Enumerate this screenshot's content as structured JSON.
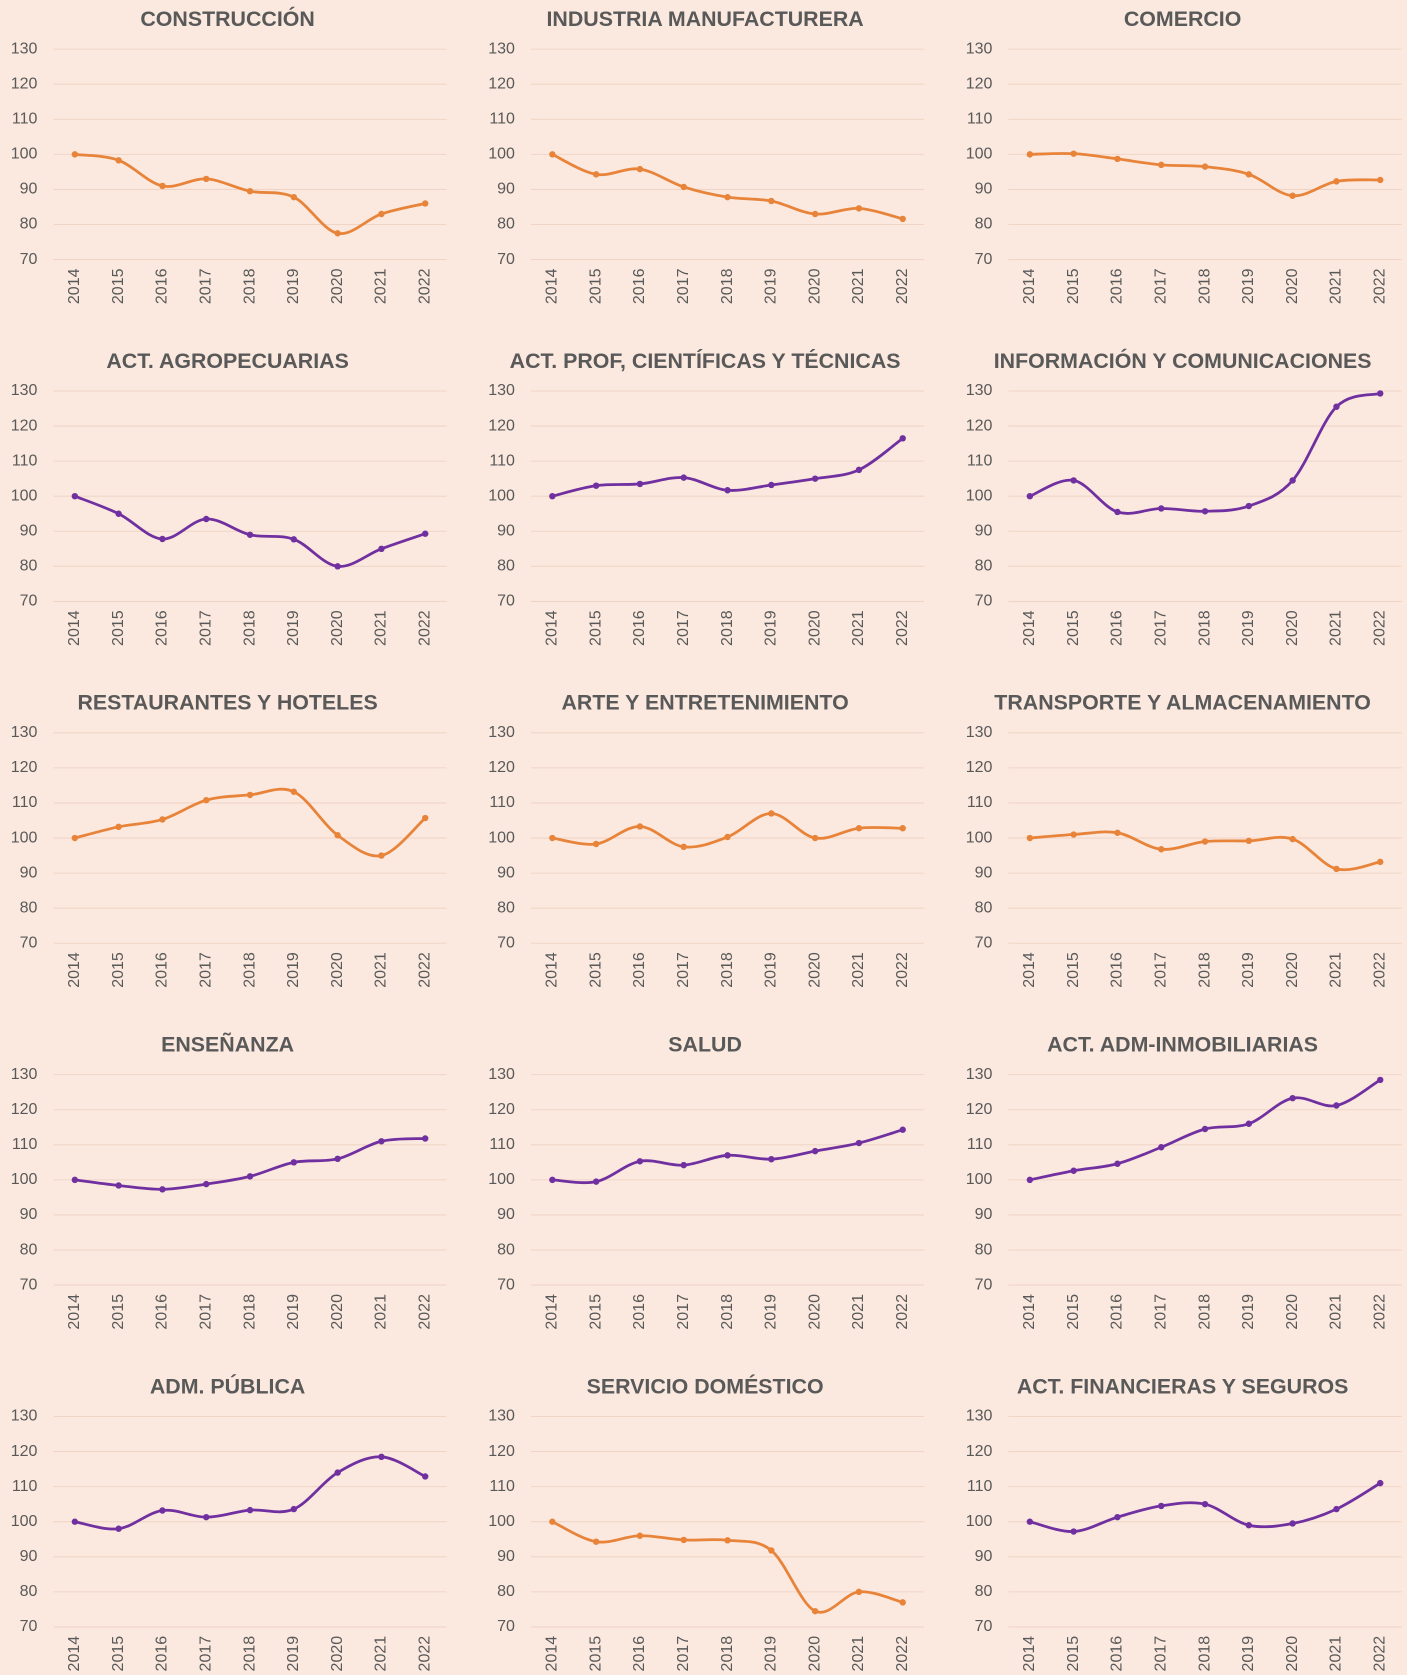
{
  "chart_data": [
    {
      "type": "line",
      "title": "CONSTRUCCIÓN",
      "categories": [
        "2014",
        "2015",
        "2016",
        "2017",
        "2018",
        "2019",
        "2020",
        "2021",
        "2022"
      ],
      "values": [
        100,
        98.3,
        91,
        93,
        89.5,
        87.8,
        77.5,
        83,
        86
      ],
      "color": "#e8833a",
      "ylim": [
        70,
        130
      ],
      "yticks": [
        70,
        80,
        90,
        100,
        110,
        120,
        130
      ],
      "grid": true,
      "smooth": true
    },
    {
      "type": "line",
      "title": "INDUSTRIA MANUFACTURERA",
      "categories": [
        "2014",
        "2015",
        "2016",
        "2017",
        "2018",
        "2019",
        "2020",
        "2021",
        "2022"
      ],
      "values": [
        100,
        94.3,
        95.8,
        90.7,
        87.8,
        86.7,
        83,
        84.6,
        81.6
      ],
      "color": "#e8833a",
      "ylim": [
        70,
        130
      ],
      "yticks": [
        70,
        80,
        90,
        100,
        110,
        120,
        130
      ],
      "grid": true,
      "smooth": true
    },
    {
      "type": "line",
      "title": "COMERCIO",
      "categories": [
        "2014",
        "2015",
        "2016",
        "2017",
        "2018",
        "2019",
        "2020",
        "2021",
        "2022"
      ],
      "values": [
        100,
        100.2,
        98.7,
        97,
        96.5,
        94.3,
        88.2,
        92.3,
        92.7
      ],
      "color": "#e8833a",
      "ylim": [
        70,
        130
      ],
      "yticks": [
        70,
        80,
        90,
        100,
        110,
        120,
        130
      ],
      "grid": true,
      "smooth": true
    },
    {
      "type": "line",
      "title": "ACT. AGROPECUARIAS",
      "categories": [
        "2014",
        "2015",
        "2016",
        "2017",
        "2018",
        "2019",
        "2020",
        "2021",
        "2022"
      ],
      "values": [
        100,
        95,
        87.8,
        93.5,
        89,
        87.7,
        80,
        85,
        89.3
      ],
      "color": "#7030a0",
      "ylim": [
        70,
        130
      ],
      "yticks": [
        70,
        80,
        90,
        100,
        110,
        120,
        130
      ],
      "grid": true,
      "smooth": true
    },
    {
      "type": "line",
      "title": "ACT. PROF, CIENTÍFICAS Y TÉCNICAS",
      "categories": [
        "2014",
        "2015",
        "2016",
        "2017",
        "2018",
        "2019",
        "2020",
        "2021",
        "2022"
      ],
      "values": [
        100,
        103,
        103.5,
        105.3,
        101.7,
        103.2,
        105,
        107.5,
        116.5
      ],
      "color": "#7030a0",
      "ylim": [
        70,
        130
      ],
      "yticks": [
        70,
        80,
        90,
        100,
        110,
        120,
        130
      ],
      "grid": true,
      "smooth": true
    },
    {
      "type": "line",
      "title": "INFORMACIÓN Y COMUNICACIONES",
      "categories": [
        "2014",
        "2015",
        "2016",
        "2017",
        "2018",
        "2019",
        "2020",
        "2021",
        "2022"
      ],
      "values": [
        100,
        104.5,
        95.5,
        96.5,
        95.7,
        97.2,
        104.5,
        125.5,
        129.3
      ],
      "color": "#7030a0",
      "ylim": [
        70,
        130
      ],
      "yticks": [
        70,
        80,
        90,
        100,
        110,
        120,
        130
      ],
      "grid": true,
      "smooth": true
    },
    {
      "type": "line",
      "title": "RESTAURANTES Y HOTELES",
      "categories": [
        "2014",
        "2015",
        "2016",
        "2017",
        "2018",
        "2019",
        "2020",
        "2021",
        "2022"
      ],
      "values": [
        100,
        103.2,
        105.3,
        110.8,
        112.3,
        113.2,
        100.8,
        95,
        105.7
      ],
      "color": "#e8833a",
      "ylim": [
        70,
        130
      ],
      "yticks": [
        70,
        80,
        90,
        100,
        110,
        120,
        130
      ],
      "grid": true,
      "smooth": true
    },
    {
      "type": "line",
      "title": "ARTE Y ENTRETENIMIENTO",
      "categories": [
        "2014",
        "2015",
        "2016",
        "2017",
        "2018",
        "2019",
        "2020",
        "2021",
        "2022"
      ],
      "values": [
        100,
        98.3,
        103.3,
        97.5,
        100.3,
        107,
        100,
        102.8,
        102.8
      ],
      "color": "#e8833a",
      "ylim": [
        70,
        130
      ],
      "yticks": [
        70,
        80,
        90,
        100,
        110,
        120,
        130
      ],
      "grid": true,
      "smooth": true
    },
    {
      "type": "line",
      "title": "TRANSPORTE Y ALMACENAMIENTO",
      "categories": [
        "2014",
        "2015",
        "2016",
        "2017",
        "2018",
        "2019",
        "2020",
        "2021",
        "2022"
      ],
      "values": [
        100,
        101,
        101.5,
        96.8,
        99,
        99.2,
        99.7,
        91.2,
        93.2
      ],
      "color": "#e8833a",
      "ylim": [
        70,
        130
      ],
      "yticks": [
        70,
        80,
        90,
        100,
        110,
        120,
        130
      ],
      "grid": true,
      "smooth": true
    },
    {
      "type": "line",
      "title": "ENSEÑANZA",
      "categories": [
        "2014",
        "2015",
        "2016",
        "2017",
        "2018",
        "2019",
        "2020",
        "2021",
        "2022"
      ],
      "values": [
        100,
        98.4,
        97.3,
        98.8,
        101,
        105,
        106,
        111,
        111.8
      ],
      "color": "#7030a0",
      "ylim": [
        70,
        130
      ],
      "yticks": [
        70,
        80,
        90,
        100,
        110,
        120,
        130
      ],
      "grid": true,
      "smooth": true
    },
    {
      "type": "line",
      "title": "SALUD",
      "categories": [
        "2014",
        "2015",
        "2016",
        "2017",
        "2018",
        "2019",
        "2020",
        "2021",
        "2022"
      ],
      "values": [
        100,
        99.5,
        105.3,
        104.2,
        107,
        105.9,
        108.2,
        110.5,
        114.3
      ],
      "color": "#7030a0",
      "ylim": [
        70,
        130
      ],
      "yticks": [
        70,
        80,
        90,
        100,
        110,
        120,
        130
      ],
      "grid": true,
      "smooth": true
    },
    {
      "type": "line",
      "title": "ACT. ADM-INMOBILIARIAS",
      "categories": [
        "2014",
        "2015",
        "2016",
        "2017",
        "2018",
        "2019",
        "2020",
        "2021",
        "2022"
      ],
      "values": [
        100,
        102.6,
        104.6,
        109.3,
        114.5,
        116,
        123.3,
        121.2,
        128.5
      ],
      "color": "#7030a0",
      "ylim": [
        70,
        130
      ],
      "yticks": [
        70,
        80,
        90,
        100,
        110,
        120,
        130
      ],
      "grid": true,
      "smooth": true
    },
    {
      "type": "line",
      "title": "ADM. PÚBLICA",
      "categories": [
        "2014",
        "2015",
        "2016",
        "2017",
        "2018",
        "2019",
        "2020",
        "2021",
        "2022"
      ],
      "values": [
        100,
        98,
        103.2,
        101.3,
        103.3,
        103.6,
        114,
        118.5,
        112.9
      ],
      "color": "#7030a0",
      "ylim": [
        70,
        130
      ],
      "yticks": [
        70,
        80,
        90,
        100,
        110,
        120,
        130
      ],
      "grid": true,
      "smooth": true
    },
    {
      "type": "line",
      "title": "SERVICIO DOMÉSTICO",
      "categories": [
        "2014",
        "2015",
        "2016",
        "2017",
        "2018",
        "2019",
        "2020",
        "2021",
        "2022"
      ],
      "values": [
        100,
        94.3,
        96,
        94.8,
        94.7,
        91.8,
        74.5,
        80,
        77
      ],
      "color": "#e8833a",
      "ylim": [
        70,
        130
      ],
      "yticks": [
        70,
        80,
        90,
        100,
        110,
        120,
        130
      ],
      "grid": true,
      "smooth": true
    },
    {
      "type": "line",
      "title": "ACT. FINANCIERAS Y SEGUROS",
      "categories": [
        "2014",
        "2015",
        "2016",
        "2017",
        "2018",
        "2019",
        "2020",
        "2021",
        "2022"
      ],
      "values": [
        100,
        97.2,
        101.3,
        104.5,
        105,
        99,
        99.5,
        103.6,
        111
      ],
      "color": "#7030a0",
      "ylim": [
        70,
        130
      ],
      "yticks": [
        70,
        80,
        90,
        100,
        110,
        120,
        130
      ],
      "grid": true,
      "smooth": true
    }
  ]
}
